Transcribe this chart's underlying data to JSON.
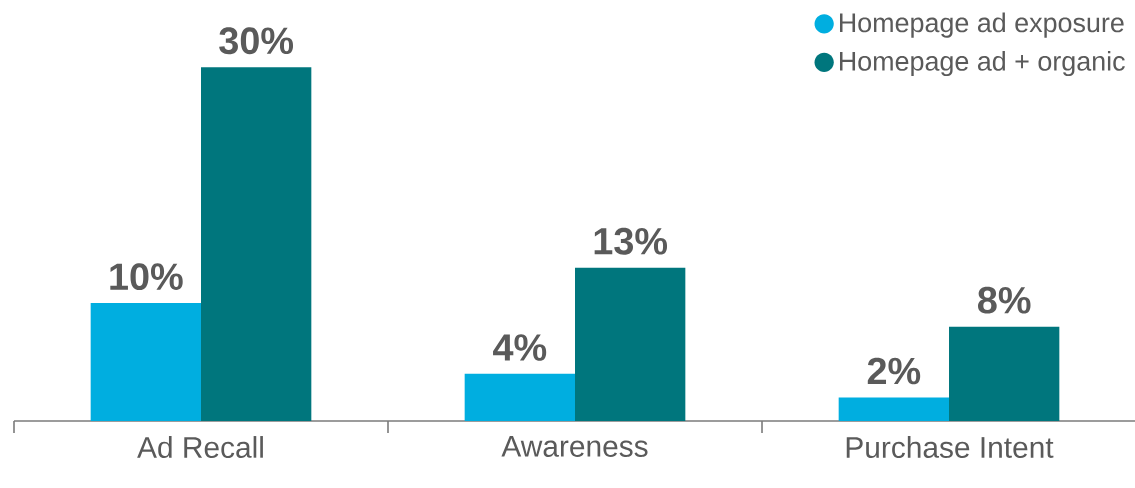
{
  "chart_data": {
    "type": "bar",
    "categories": [
      "Ad Recall",
      "Awareness",
      "Purchase Intent"
    ],
    "series": [
      {
        "name": "Homepage ad exposure",
        "color": "#00aee0",
        "values": [
          10,
          4,
          2
        ],
        "value_labels": [
          "10%",
          "4%",
          "2%"
        ]
      },
      {
        "name": "Homepage ad + organic",
        "color": "#00767d",
        "values": [
          30,
          13,
          8
        ],
        "value_labels": [
          "30%",
          "13%",
          "8%"
        ]
      }
    ],
    "legend": "top right"
  }
}
